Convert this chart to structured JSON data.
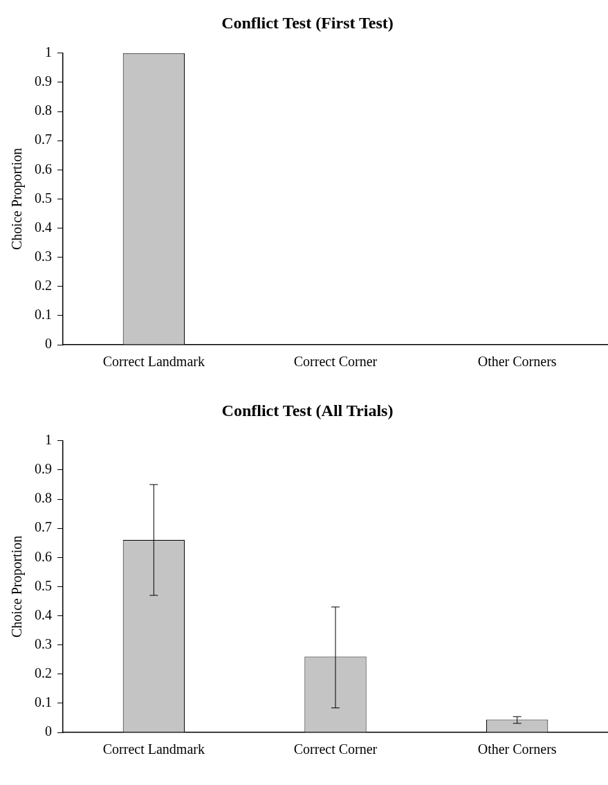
{
  "chart_data": [
    {
      "type": "bar",
      "title": "Conflict Test (First Test)",
      "ylabel": "Choice Proportion",
      "categories": [
        "Correct Landmark",
        "Correct Corner",
        "Other Corners"
      ],
      "values": [
        1,
        0,
        0
      ],
      "color": "#c4c4c4",
      "ylim": [
        0,
        1
      ],
      "yticks": [
        0,
        0.1,
        0.2,
        0.3,
        0.4,
        0.5,
        0.6,
        0.7,
        0.8,
        0.9,
        1
      ],
      "grid": false,
      "legend": false
    },
    {
      "type": "bar",
      "title": "Conflict Test (All Trials)",
      "ylabel": "Choice Proportion",
      "categories": [
        "Correct Landmark",
        "Correct Corner",
        "Other Corners"
      ],
      "values": [
        0.66,
        0.26,
        0.044
      ],
      "errors": [
        [
          0.47,
          0.85
        ],
        [
          0.084,
          0.43
        ],
        [
          0.031,
          0.054
        ]
      ],
      "color": "#c4c4c4",
      "ylim": [
        0,
        1
      ],
      "yticks": [
        0,
        0.1,
        0.2,
        0.3,
        0.4,
        0.5,
        0.6,
        0.7,
        0.8,
        0.9,
        1
      ],
      "grid": false,
      "legend": false
    }
  ]
}
